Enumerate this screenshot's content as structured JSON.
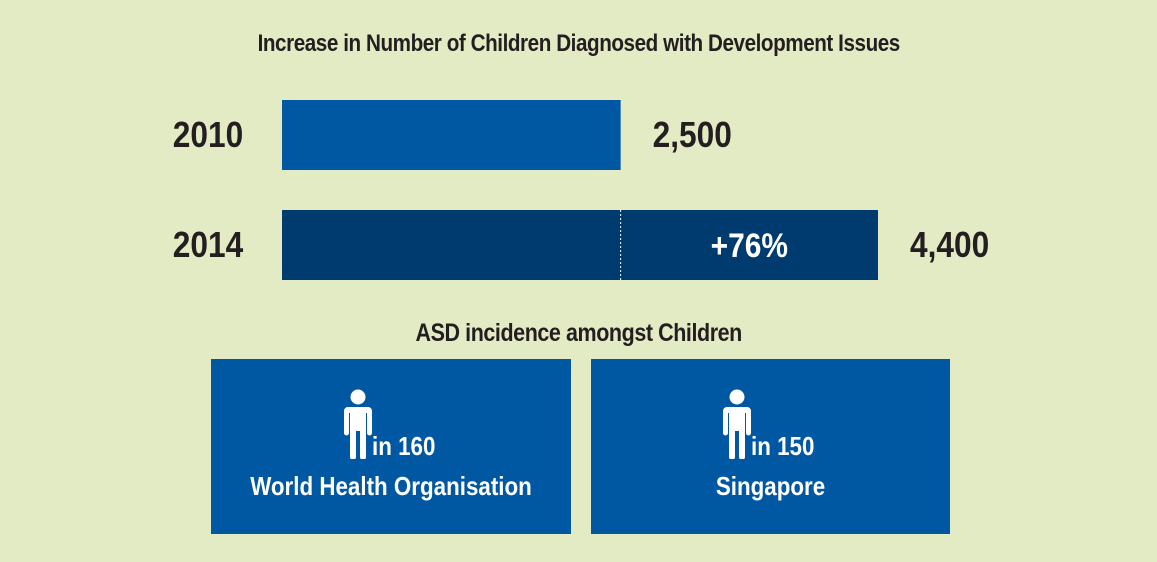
{
  "chart_data": {
    "type": "bar",
    "title": "Increase in Number of Children Diagnosed with Development Issues",
    "categories": [
      "2010",
      "2014"
    ],
    "values": [
      2500,
      4400
    ],
    "value_labels": [
      "2,500",
      "4,400"
    ],
    "increase_label": "+76%",
    "colors": {
      "bar_2010": "#0058a2",
      "bar_2014": "#003b6f"
    }
  },
  "asd": {
    "title": "ASD incidence amongst Children",
    "cards": [
      {
        "ratio": "in 160",
        "source": "World Health Organisation"
      },
      {
        "ratio": "in 150",
        "source": "Singapore"
      }
    ]
  },
  "icons": [
    "person-icon"
  ],
  "colors": {
    "background": "#e3ebc4",
    "card": "#0058a2",
    "text": "#231f20"
  }
}
